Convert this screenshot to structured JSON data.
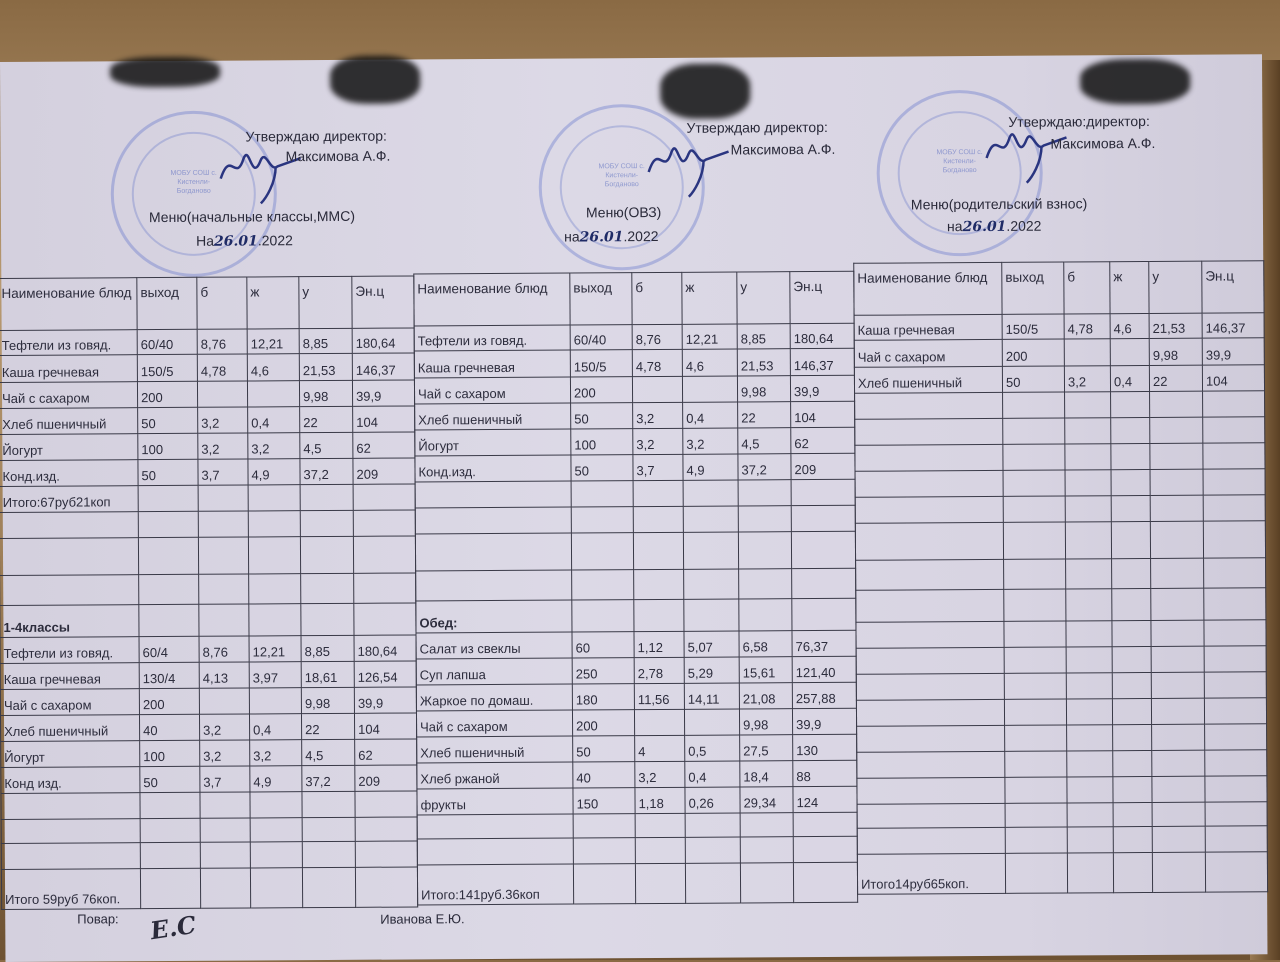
{
  "columns": [
    "Наименование блюд",
    "выход",
    "б",
    "ж",
    "у",
    "Эн.ц"
  ],
  "header_blocks": [
    {
      "approve": "Утверждаю директор:",
      "director": "Максимова А.Ф.",
      "menu": "Меню(начальные классы,ММС)",
      "date_prefix": "На",
      "date_hand": "26.01",
      "date_suffix": ".2022",
      "stamp_text": "МОБУ СОШ с. Кистенли-Богдановo"
    },
    {
      "approve": "Утверждаю  директор:",
      "director": "Максимова А.Ф.",
      "menu": "Меню(ОВЗ)",
      "date_prefix": "на",
      "date_hand": "26.01",
      "date_suffix": ".2022",
      "stamp_text": "МОБУ СОШ с. Кистенли-Богданово"
    },
    {
      "approve": "Утверждаю:директор:",
      "director": "Максимова А.Ф.",
      "menu": "Меню(родительский взнос)",
      "date_prefix": "на",
      "date_hand": "26.01",
      "date_suffix": ".2022",
      "stamp_text": "МОБУ СОШ с. Кистенли-Богданово"
    }
  ],
  "tables": [
    {
      "rows": [
        [
          "Тефтели из  говяд.",
          "60/40",
          "8,76",
          "12,21",
          "8,85",
          "180,64"
        ],
        [
          "Каша гречневая",
          "150/5",
          "4,78",
          "4,6",
          "21,53",
          "146,37"
        ],
        [
          "Чай с сахаром",
          "200",
          "",
          "",
          "9,98",
          "39,9"
        ],
        [
          "Хлеб пшеничный",
          "50",
          "3,2",
          "0,4",
          "22",
          "104"
        ],
        [
          "Йогурт",
          "100",
          "3,2",
          "3,2",
          "4,5",
          "62"
        ],
        [
          "Конд.изд.",
          "50",
          "3,7",
          "4,9",
          "37,2",
          "209"
        ],
        [
          "Итого:67руб21коп",
          "",
          "",
          "",
          "",
          ""
        ],
        [
          "",
          "",
          "",
          "",
          "",
          ""
        ],
        [
          "",
          "",
          "",
          "",
          "",
          ""
        ],
        [
          "",
          "",
          "",
          "",
          "",
          ""
        ],
        [
          "1-4классы",
          "",
          "",
          "",
          "",
          ""
        ],
        [
          "Тефтели из говяд.",
          "60/4",
          "8,76",
          "12,21",
          "8,85",
          "180,64"
        ],
        [
          "Каша гречневая",
          "130/4",
          "4,13",
          "3,97",
          "18,61",
          "126,54"
        ],
        [
          "Чай с сахаром",
          "200",
          "",
          "",
          "9,98",
          "39,9"
        ],
        [
          "Хлеб пшеничный",
          "40",
          "3,2",
          "0,4",
          "22",
          "104"
        ],
        [
          "Йогурт",
          "100",
          "3,2",
          "3,2",
          "4,5",
          "62"
        ],
        [
          "Конд изд.",
          "50",
          "3,7",
          "4,9",
          "37,2",
          "209"
        ],
        [
          "",
          "",
          "",
          "",
          "",
          ""
        ],
        [
          "",
          "",
          "",
          "",
          "",
          ""
        ],
        [
          "",
          "",
          "",
          "",
          "",
          ""
        ],
        [
          "Итого 59руб 76коп.",
          "",
          "",
          "",
          "",
          ""
        ]
      ],
      "bold_rows": [
        10
      ]
    },
    {
      "rows": [
        [
          "Тефтели из говяд.",
          "60/40",
          "8,76",
          "12,21",
          "8,85",
          "180,64"
        ],
        [
          "Каша гречневая",
          "150/5",
          "4,78",
          "4,6",
          "21,53",
          "146,37"
        ],
        [
          "Чай с сахаром",
          "200",
          "",
          "",
          "9,98",
          "39,9"
        ],
        [
          "Хлеб пшеничный",
          "50",
          "3,2",
          "0,4",
          "22",
          "104"
        ],
        [
          "Йогурт",
          "100",
          "3,2",
          "3,2",
          "4,5",
          "62"
        ],
        [
          "Конд.изд.",
          "50",
          "3,7",
          "4,9",
          "37,2",
          "209"
        ],
        [
          "",
          "",
          "",
          "",
          "",
          ""
        ],
        [
          "",
          "",
          "",
          "",
          "",
          ""
        ],
        [
          "",
          "",
          "",
          "",
          "",
          ""
        ],
        [
          "",
          "",
          "",
          "",
          "",
          ""
        ],
        [
          "Обед:",
          "",
          "",
          "",
          "",
          ""
        ],
        [
          "Салат из свеклы",
          "60",
          "1,12",
          "5,07",
          "6,58",
          "76,37"
        ],
        [
          "Суп лапша",
          "250",
          "2,78",
          "5,29",
          "15,61",
          "121,40"
        ],
        [
          "Жаркое по домаш.",
          "180",
          "11,56",
          "14,11",
          "21,08",
          "257,88"
        ],
        [
          "Чай с сахаром",
          "200",
          "",
          "",
          "9,98",
          "39,9"
        ],
        [
          "Хлеб пшеничный",
          "50",
          "4",
          "0,5",
          "27,5",
          "130"
        ],
        [
          "Хлеб ржаной",
          "40",
          "3,2",
          "0,4",
          "18,4",
          "88"
        ],
        [
          "фрукты",
          "150",
          "1,18",
          "0,26",
          "29,34",
          "124"
        ],
        [
          "",
          "",
          "",
          "",
          "",
          ""
        ],
        [
          "",
          "",
          "",
          "",
          "",
          ""
        ],
        [
          "Итого:141руб.36коп",
          "",
          "",
          "",
          "",
          ""
        ]
      ],
      "bold_rows": [
        10
      ]
    },
    {
      "rows": [
        [
          "Каша гречневая",
          "150/5",
          "4,78",
          "4,6",
          "21,53",
          "146,37"
        ],
        [
          "Чай с сахаром",
          "200",
          "",
          "",
          "9,98",
          "39,9"
        ],
        [
          "Хлеб пшеничный",
          "50",
          "3,2",
          "0,4",
          "22",
          "104"
        ],
        [
          "",
          "",
          "",
          "",
          "",
          ""
        ],
        [
          "",
          "",
          "",
          "",
          "",
          ""
        ],
        [
          "",
          "",
          "",
          "",
          "",
          ""
        ],
        [
          "",
          "",
          "",
          "",
          "",
          ""
        ],
        [
          "",
          "",
          "",
          "",
          "",
          ""
        ],
        [
          "",
          "",
          "",
          "",
          "",
          ""
        ],
        [
          "",
          "",
          "",
          "",
          "",
          ""
        ],
        [
          "",
          "",
          "",
          "",
          "",
          ""
        ],
        [
          "",
          "",
          "",
          "",
          "",
          ""
        ],
        [
          "",
          "",
          "",
          "",
          "",
          ""
        ],
        [
          "",
          "",
          "",
          "",
          "",
          ""
        ],
        [
          "",
          "",
          "",
          "",
          "",
          ""
        ],
        [
          "",
          "",
          "",
          "",
          "",
          ""
        ],
        [
          "",
          "",
          "",
          "",
          "",
          ""
        ],
        [
          "",
          "",
          "",
          "",
          "",
          ""
        ],
        [
          "",
          "",
          "",
          "",
          "",
          ""
        ],
        [
          "",
          "",
          "",
          "",
          "",
          ""
        ],
        [
          "Итого14руб65коп.",
          "",
          "",
          "",
          "",
          ""
        ]
      ],
      "bold_rows": []
    }
  ],
  "footer": {
    "cook_label": "Повар:",
    "cook_signature": "Е.С",
    "cook_name": "Иванова Е.Ю."
  },
  "colors": {
    "paper": "#d9d6e4",
    "ink": "#2d2d3d",
    "stamp": "#5a6ec8",
    "handwriting": "#1f2b66"
  }
}
